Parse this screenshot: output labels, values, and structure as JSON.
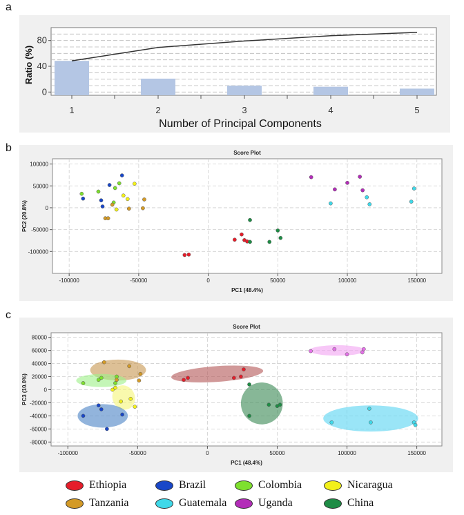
{
  "panels": {
    "a": {
      "letter": "a"
    },
    "b": {
      "letter": "b"
    },
    "c": {
      "letter": "c"
    }
  },
  "chart_data": [
    {
      "type": "bar",
      "categories": [
        "1",
        "2",
        "3",
        "4",
        "5"
      ],
      "series": [
        {
          "kind": "bar",
          "values": [
            48.4,
            20.8,
            10.0,
            8.2,
            5.3
          ]
        },
        {
          "kind": "line",
          "values": [
            48.4,
            69.2,
            79.2,
            87.4,
            92.7
          ]
        }
      ],
      "xlabel": "Number of Principal Components",
      "ylabel": "Ratio (%)",
      "yticks": [
        "0",
        "40",
        "80"
      ],
      "ylim": [
        -5,
        100
      ],
      "grid": true,
      "colors": {
        "bar": "#b4c6e4",
        "line": "#333333",
        "background": "#f0f0f0"
      }
    },
    {
      "type": "scatter",
      "title": "Score Plot",
      "xlabel": "PC1 (48.4%)",
      "ylabel": "PC2 (20.8%)",
      "xlim": [
        -112000,
        168000
      ],
      "ylim": [
        -150000,
        112000
      ],
      "xticks": [
        "-100000",
        "-50000",
        "0",
        "50000",
        "100000",
        "150000"
      ],
      "yticks": [
        "100000",
        "50000",
        "0",
        "-50000",
        "-100000"
      ],
      "grid": true,
      "series": [
        {
          "group": "Ethiopia",
          "color": "#e51d2a",
          "points": [
            [
              -17000,
              -108000
            ],
            [
              -14000,
              -107000
            ],
            [
              19000,
              -73000
            ],
            [
              24000,
              -61000
            ],
            [
              26000,
              -74000
            ],
            [
              28000,
              -77000
            ]
          ]
        },
        {
          "group": "Brazil",
          "color": "#1947c8",
          "points": [
            [
              -90000,
              21000
            ],
            [
              -77000,
              17000
            ],
            [
              -71000,
              52000
            ],
            [
              -62000,
              74000
            ],
            [
              -76000,
              3000
            ]
          ]
        },
        {
          "group": "Colombia",
          "color": "#7ee02e",
          "points": [
            [
              -91000,
              32000
            ],
            [
              -79000,
              37000
            ],
            [
              -67000,
              45000
            ],
            [
              -64000,
              56000
            ],
            [
              -68000,
              12000
            ]
          ]
        },
        {
          "group": "Nicaragua",
          "color": "#f2f01a",
          "points": [
            [
              -61000,
              28000
            ],
            [
              -53000,
              55000
            ],
            [
              -58000,
              20000
            ],
            [
              -66000,
              -4000
            ]
          ]
        },
        {
          "group": "Tanzania",
          "color": "#d39a27",
          "points": [
            [
              -74000,
              -24000
            ],
            [
              -72000,
              -24000
            ],
            [
              -69000,
              7000
            ],
            [
              -46000,
              19000
            ],
            [
              -47000,
              -1000
            ],
            [
              -57000,
              -2000
            ]
          ]
        },
        {
          "group": "Guatemala",
          "color": "#3fd8e8",
          "points": [
            [
              88000,
              10000
            ],
            [
              114000,
              24000
            ],
            [
              116000,
              8000
            ],
            [
              146000,
              14000
            ],
            [
              148000,
              44000
            ]
          ]
        },
        {
          "group": "Uganda",
          "color": "#b32db8",
          "points": [
            [
              74000,
              70000
            ],
            [
              91000,
              42000
            ],
            [
              100000,
              57000
            ],
            [
              109000,
              71000
            ],
            [
              111000,
              40000
            ]
          ]
        },
        {
          "group": "China",
          "color": "#1e8c45",
          "points": [
            [
              30000,
              -28000
            ],
            [
              30000,
              -78000
            ],
            [
              44000,
              -78000
            ],
            [
              50000,
              -52000
            ],
            [
              52000,
              -69000
            ]
          ]
        }
      ]
    },
    {
      "type": "scatter",
      "title": "Score Plot",
      "xlabel": "PC1 (48.4%)",
      "ylabel": "PC3 (10.0%)",
      "xlim": [
        -112000,
        168000
      ],
      "ylim": [
        -86000,
        87000
      ],
      "xticks": [
        "-100000",
        "-50000",
        "0",
        "50000",
        "100000",
        "150000"
      ],
      "yticks": [
        "80000",
        "60000",
        "40000",
        "20000",
        "0",
        "-20000",
        "-40000",
        "-60000",
        "-80000"
      ],
      "grid": true,
      "series": [
        {
          "group": "Ethiopia",
          "color": "#e51d2a",
          "points": [
            [
              -17000,
              15000
            ],
            [
              -14000,
              18000
            ],
            [
              19000,
              18000
            ],
            [
              24000,
              20000
            ],
            [
              26000,
              31000
            ]
          ]
        },
        {
          "group": "Brazil",
          "color": "#1947c8",
          "points": [
            [
              -89000,
              -40000
            ],
            [
              -78000,
              -24000
            ],
            [
              -76000,
              -30000
            ],
            [
              -72000,
              -60000
            ],
            [
              -61000,
              -38000
            ]
          ]
        },
        {
          "group": "Colombia",
          "color": "#7ee02e",
          "points": [
            [
              -89000,
              10000
            ],
            [
              -78000,
              15000
            ],
            [
              -76000,
              18000
            ],
            [
              -65000,
              20000
            ],
            [
              -66000,
              10000
            ]
          ]
        },
        {
          "group": "Nicaragua",
          "color": "#f2f01a",
          "points": [
            [
              -68000,
              0
            ],
            [
              -66000,
              3000
            ],
            [
              -62000,
              -18000
            ],
            [
              -55000,
              -14000
            ],
            [
              -52000,
              -26000
            ]
          ]
        },
        {
          "group": "Tanzania",
          "color": "#d39a27",
          "points": [
            [
              -74000,
              42000
            ],
            [
              -65000,
              15000
            ],
            [
              -56000,
              36000
            ],
            [
              -48000,
              24000
            ],
            [
              -49000,
              14000
            ]
          ]
        },
        {
          "group": "Guatemala",
          "color": "#3fd8e8",
          "points": [
            [
              89000,
              -50000
            ],
            [
              116000,
              -29000
            ],
            [
              117000,
              -50000
            ],
            [
              148000,
              -50000
            ],
            [
              149000,
              -54000
            ]
          ]
        },
        {
          "group": "Uganda",
          "color": "#e472e8",
          "points": [
            [
              74000,
              59000
            ],
            [
              91000,
              62000
            ],
            [
              100000,
              54000
            ],
            [
              111000,
              57000
            ],
            [
              112000,
              62000
            ]
          ]
        },
        {
          "group": "China",
          "color": "#1e8c45",
          "points": [
            [
              30000,
              8000
            ],
            [
              30000,
              -40000
            ],
            [
              44000,
              -23000
            ],
            [
              50000,
              -25000
            ],
            [
              52000,
              -23000
            ]
          ]
        }
      ],
      "ellipses": [
        {
          "group": "Ethiopia",
          "color": "#b55a5a",
          "center": [
            7000,
            24000
          ],
          "rx": 33000,
          "ry": 12000,
          "angle": -4
        },
        {
          "group": "Tanzania",
          "color": "#c89a55",
          "center": [
            -64000,
            30000
          ],
          "rx": 20000,
          "ry": 16000,
          "angle": 0
        },
        {
          "group": "Colombia",
          "color": "#9ff08a",
          "center": [
            -76000,
            14000
          ],
          "rx": 18000,
          "ry": 10000,
          "angle": 0
        },
        {
          "group": "Nicaragua",
          "color": "#f6f57a",
          "center": [
            -60000,
            -12000
          ],
          "rx": 8000,
          "ry": 19000,
          "angle": -25
        },
        {
          "group": "Brazil",
          "color": "#4f86c6",
          "center": [
            -75000,
            -40000
          ],
          "rx": 18000,
          "ry": 18000,
          "angle": 0
        },
        {
          "group": "China",
          "color": "#3d8a57",
          "center": [
            39000,
            -21000
          ],
          "rx": 15000,
          "ry": 32000,
          "angle": -8
        },
        {
          "group": "Uganda",
          "color": "#f2a4f2",
          "center": [
            93000,
            60000
          ],
          "rx": 20000,
          "ry": 8000,
          "angle": 0
        },
        {
          "group": "Guatemala",
          "color": "#5cd5f2",
          "center": [
            117000,
            -44000
          ],
          "rx": 34000,
          "ry": 20000,
          "angle": 0
        }
      ]
    }
  ],
  "legend": [
    {
      "label": "Ethiopia",
      "color": "#e51d2a"
    },
    {
      "label": "Brazil",
      "color": "#1947c8"
    },
    {
      "label": "Colombia",
      "color": "#7ee02e"
    },
    {
      "label": "Nicaragua",
      "color": "#f2f01a"
    },
    {
      "label": "Tanzania",
      "color": "#d39a27"
    },
    {
      "label": "Guatemala",
      "color": "#3fd8e8"
    },
    {
      "label": "Uganda",
      "color": "#b32db8"
    },
    {
      "label": "China",
      "color": "#1e8c45"
    }
  ]
}
